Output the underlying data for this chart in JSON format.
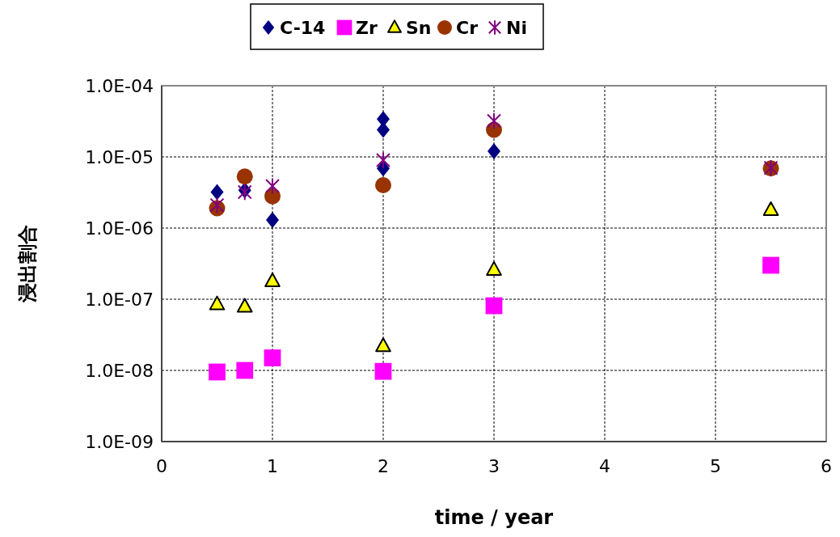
{
  "chart_data": {
    "type": "scatter",
    "xlabel": "time / year",
    "ylabel": "浸出割合",
    "log": "y",
    "grid": true,
    "legend": "top",
    "xlim": [
      0,
      6
    ],
    "xticks": [
      0,
      1,
      2,
      3,
      4,
      5,
      6
    ],
    "ylim": [
      1e-09,
      0.0001
    ],
    "yticks": [
      {
        "value": 1e-09,
        "label": "1.0E-09"
      },
      {
        "value": 1e-08,
        "label": "1.0E-08"
      },
      {
        "value": 1e-07,
        "label": "1.0E-07"
      },
      {
        "value": 1e-06,
        "label": "1.0E-06"
      },
      {
        "value": 1e-05,
        "label": "1.0E-05"
      },
      {
        "value": 0.0001,
        "label": "1.0E-04"
      }
    ],
    "series": [
      {
        "name": "C-14",
        "color": "#000080",
        "marker": "diamond",
        "x": [
          0.5,
          0.75,
          1,
          2,
          2,
          2,
          3
        ],
        "values": [
          3.2e-06,
          3.4e-06,
          1.3e-06,
          3.4e-05,
          2.4e-05,
          6.9e-06,
          1.2e-05
        ]
      },
      {
        "name": "Zr",
        "color": "#ff00ff",
        "marker": "square",
        "x": [
          0.5,
          0.75,
          1,
          2,
          3,
          5.5
        ],
        "values": [
          9.5e-09,
          1e-08,
          1.5e-08,
          9.7e-09,
          8.1e-08,
          3e-07
        ]
      },
      {
        "name": "Sn",
        "color": "#ffff00",
        "marker": "triangle",
        "x": [
          0.5,
          0.75,
          1,
          2,
          3,
          5.5
        ],
        "values": [
          8.5e-08,
          7.9e-08,
          1.8e-07,
          2.2e-08,
          2.6e-07,
          1.8e-06
        ]
      },
      {
        "name": "Cr",
        "color": "#993300",
        "marker": "circle",
        "x": [
          0.5,
          0.75,
          1,
          2,
          3,
          5.5
        ],
        "values": [
          1.9e-06,
          5.3e-06,
          2.8e-06,
          4e-06,
          2.4e-05,
          6.9e-06
        ]
      },
      {
        "name": "Ni",
        "color": "#800080",
        "marker": "cross",
        "x": [
          0.5,
          0.75,
          1,
          2,
          3,
          5.5
        ],
        "values": [
          2.1e-06,
          3.2e-06,
          3.9e-06,
          9e-06,
          3.2e-05,
          7e-06
        ]
      }
    ]
  }
}
